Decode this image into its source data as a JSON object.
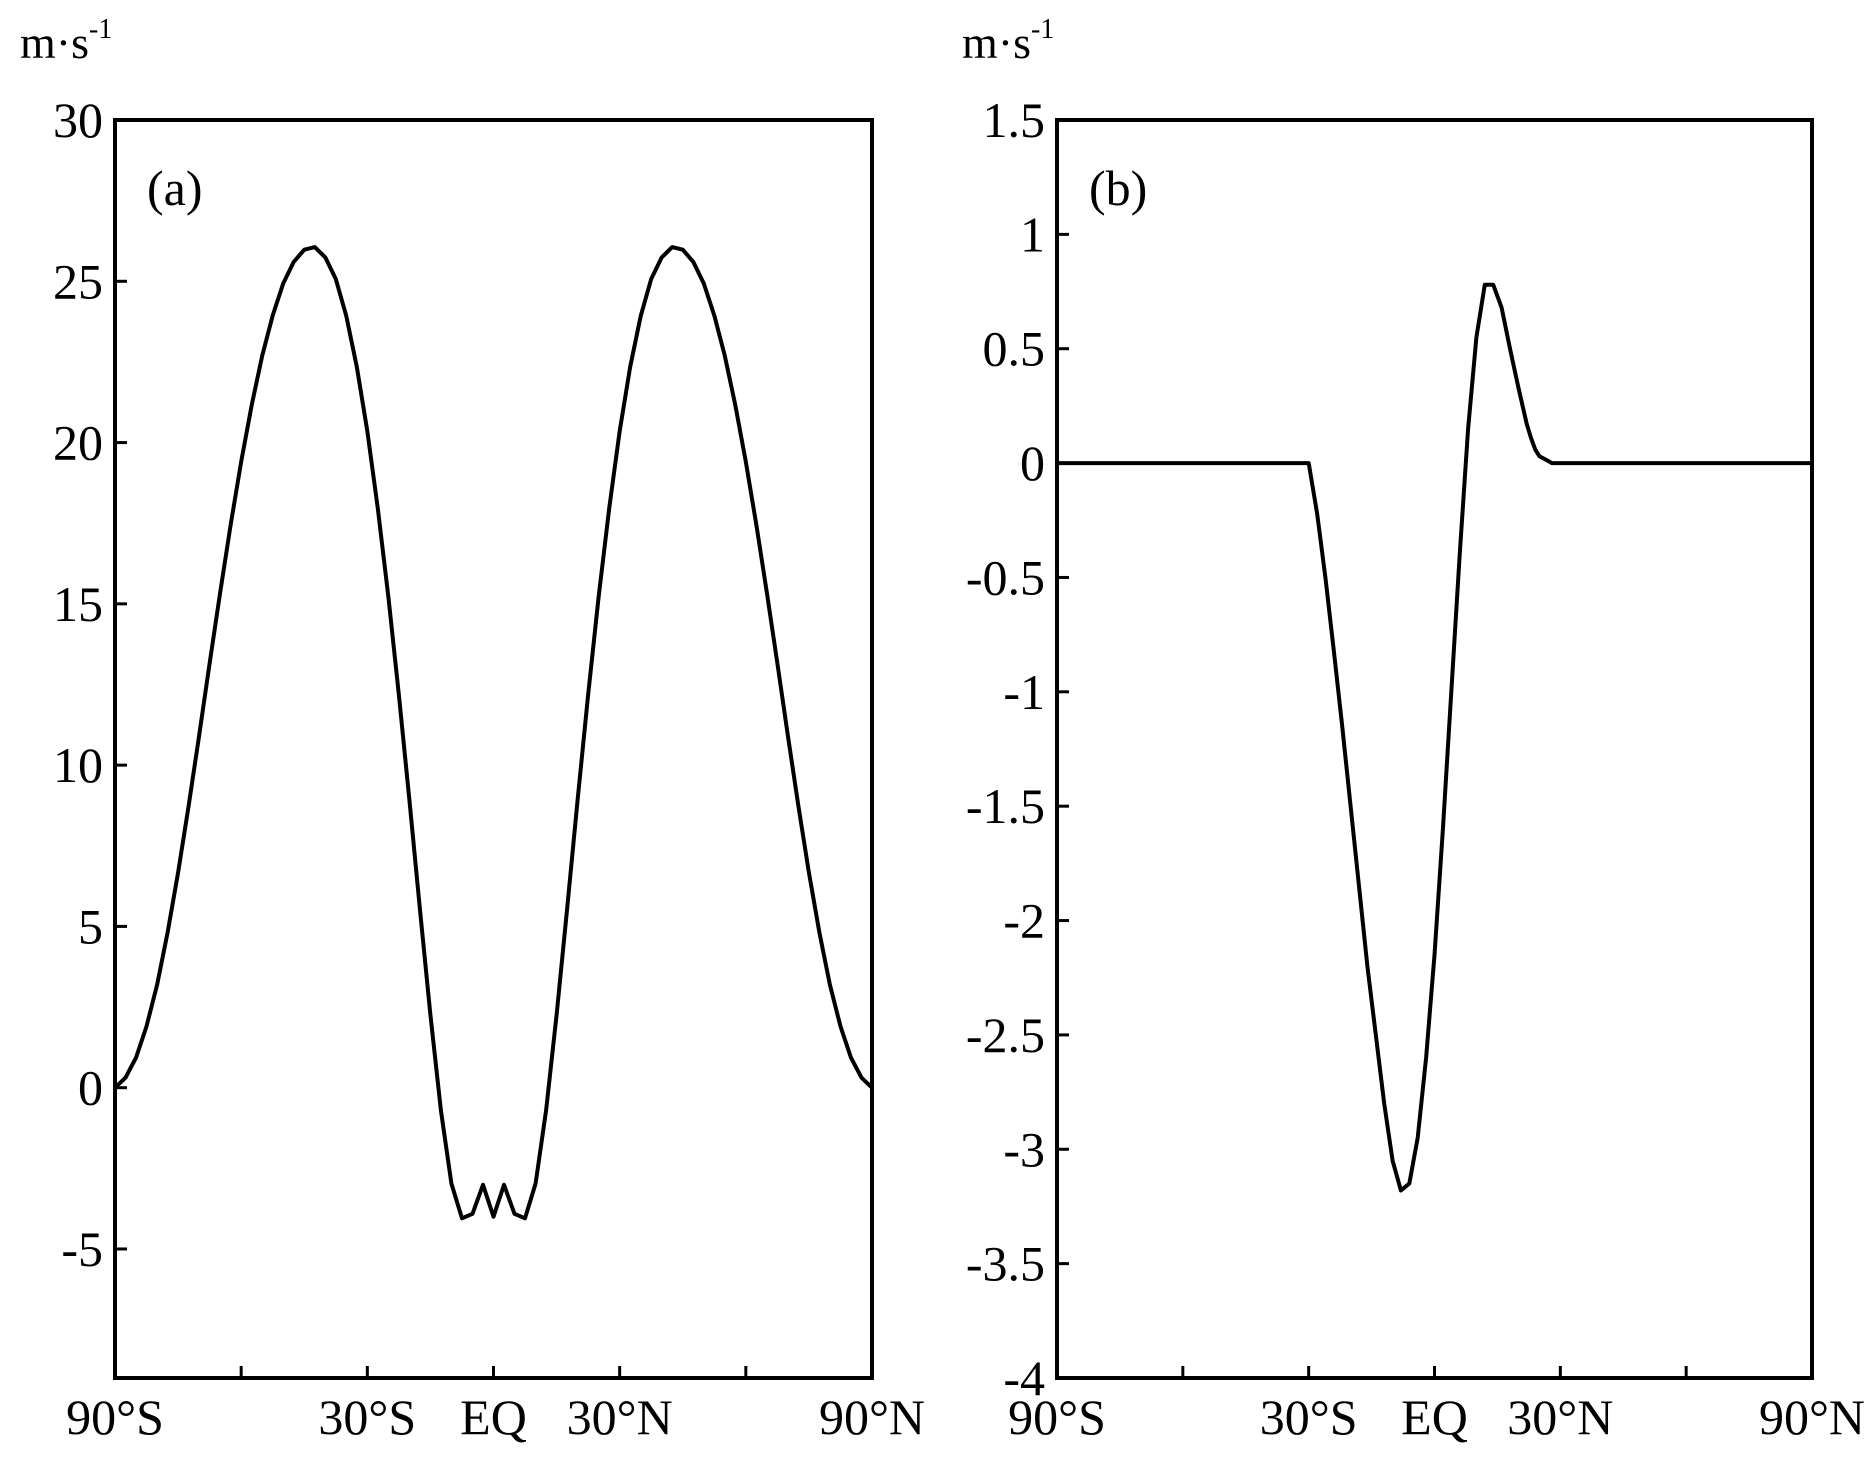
{
  "chart_data": [
    {
      "type": "line",
      "panel_label": "(a)",
      "ylabel_unit": {
        "base": "m·s",
        "exponent": "-1"
      },
      "ylim": [
        -9,
        30
      ],
      "xlim": [
        -90,
        90
      ],
      "yticks": [
        30,
        25,
        20,
        15,
        10,
        5,
        0,
        -5
      ],
      "ytick_labels": [
        "30",
        "25",
        "20",
        "15",
        "10",
        "5",
        "0",
        "-5"
      ],
      "xticks": [
        -90,
        -60,
        -30,
        0,
        30,
        60,
        90
      ],
      "xtick_labels": [
        {
          "value": -90,
          "text": "90°S"
        },
        {
          "value": -30,
          "text": "30°S"
        },
        {
          "value": 0,
          "text": "EQ"
        },
        {
          "value": 30,
          "text": "30°N"
        },
        {
          "value": 90,
          "text": "90°N"
        }
      ],
      "grid": false,
      "series": [
        {
          "x": [
            -90,
            -87.5,
            -85,
            -82.5,
            -80,
            -77.5,
            -75,
            -72.5,
            -70,
            -67.5,
            -65,
            -62.5,
            -60,
            -57.5,
            -55,
            -52.5,
            -50,
            -47.5,
            -45,
            -42.5,
            -40,
            -37.5,
            -35,
            -32.5,
            -30,
            -27.5,
            -25,
            -22.5,
            -20,
            -17.5,
            -15,
            -12.5,
            -10,
            -7.5,
            -5,
            -2.5,
            0,
            2.5,
            5,
            7.5,
            10,
            12.5,
            15,
            17.5,
            20,
            22.5,
            25,
            27.5,
            30,
            32.5,
            35,
            37.5,
            40,
            42.5,
            45,
            47.5,
            50,
            52.5,
            55,
            57.5,
            60,
            62.5,
            65,
            67.5,
            70,
            72.5,
            75,
            77.5,
            80,
            82.5,
            85,
            87.5,
            90
          ],
          "y": [
            0.0,
            0.31,
            0.93,
            1.9,
            3.19,
            4.81,
            6.67,
            8.73,
            10.91,
            13.15,
            15.34,
            17.46,
            19.41,
            21.16,
            22.69,
            23.94,
            24.93,
            25.6,
            25.98,
            26.06,
            25.74,
            25.07,
            23.92,
            22.35,
            20.36,
            17.96,
            15.21,
            12.17,
            8.92,
            5.54,
            2.26,
            -0.7,
            -2.97,
            -4.05,
            -3.91,
            -3.01,
            -4.0,
            -3.01,
            -3.91,
            -4.05,
            -2.97,
            -0.7,
            2.26,
            5.54,
            8.92,
            12.17,
            15.21,
            17.96,
            20.36,
            22.35,
            23.92,
            25.07,
            25.74,
            26.06,
            25.98,
            25.6,
            24.93,
            23.94,
            22.69,
            21.16,
            19.41,
            17.46,
            15.34,
            13.15,
            10.91,
            8.73,
            6.67,
            4.81,
            3.19,
            1.9,
            0.93,
            0.31,
            0.0
          ]
        }
      ]
    },
    {
      "type": "line",
      "panel_label": "(b)",
      "ylabel_unit": {
        "base": "m·s",
        "exponent": "-1"
      },
      "ylim": [
        -4,
        1.5
      ],
      "xlim": [
        -90,
        90
      ],
      "yticks": [
        1.5,
        1,
        0.5,
        0,
        -0.5,
        -1,
        -1.5,
        -2,
        -2.5,
        -3,
        -3.5,
        -4
      ],
      "ytick_labels": [
        "1.5",
        "1",
        "0.5",
        "0",
        "-0.5",
        "-1",
        "-1.5",
        "-2",
        "-2.5",
        "-3",
        "-3.5",
        "-4"
      ],
      "xticks": [
        -90,
        -60,
        -30,
        0,
        30,
        60,
        90
      ],
      "xtick_labels": [
        {
          "value": -90,
          "text": "90°S"
        },
        {
          "value": -30,
          "text": "30°S"
        },
        {
          "value": 0,
          "text": "EQ"
        },
        {
          "value": 30,
          "text": "30°N"
        },
        {
          "value": 90,
          "text": "90°N"
        }
      ],
      "grid": false,
      "series": [
        {
          "x": [
            -90,
            -30,
            -28,
            -26,
            -24,
            -22,
            -20,
            -18,
            -16,
            -14,
            -12,
            -10,
            -8,
            -6,
            -4,
            -2,
            0,
            2,
            4,
            6,
            8,
            10,
            12,
            14,
            16,
            18,
            20,
            21,
            22,
            23,
            24,
            25,
            26,
            27,
            28,
            29,
            30,
            90
          ],
          "y": [
            0,
            0,
            -0.22,
            -0.5,
            -0.82,
            -1.15,
            -1.5,
            -1.85,
            -2.2,
            -2.5,
            -2.8,
            -3.05,
            -3.18,
            -3.15,
            -2.95,
            -2.6,
            -2.15,
            -1.6,
            -1.0,
            -0.4,
            0.15,
            0.55,
            0.78,
            0.78,
            0.68,
            0.5,
            0.33,
            0.25,
            0.17,
            0.11,
            0.06,
            0.03,
            0.02,
            0.01,
            0.0,
            0.0,
            0,
            0
          ]
        }
      ]
    }
  ]
}
